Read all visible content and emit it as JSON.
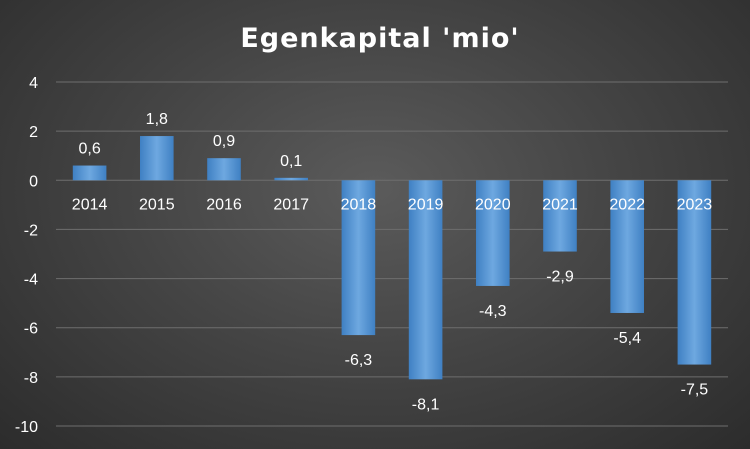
{
  "chart_data": {
    "type": "bar",
    "title": "Egenkapital 'mio'",
    "xlabel": "",
    "ylabel": "",
    "categories": [
      "2014",
      "2015",
      "2016",
      "2017",
      "2018",
      "2019",
      "2020",
      "2021",
      "2022",
      "2023"
    ],
    "values": [
      0.6,
      1.8,
      0.9,
      0.1,
      -6.3,
      -8.1,
      -4.3,
      -2.9,
      -5.4,
      -7.5
    ],
    "data_labels": [
      "0,6",
      "1,8",
      "0,9",
      "0,1",
      "-6,3",
      "-8,1",
      "-4,3",
      "-2,9",
      "-5,4",
      "-7,5"
    ],
    "ylim": [
      -10,
      4
    ],
    "yticks": [
      4,
      2,
      0,
      -2,
      -4,
      -6,
      -8,
      -10
    ],
    "ytick_labels": [
      "4",
      "2",
      "0",
      "-2",
      "-4",
      "-6",
      "-8",
      "-10"
    ],
    "grid": true,
    "legend": "none",
    "colors": {
      "bar": "#5b9bd5",
      "bar_light": "#78b0e4",
      "bar_dark": "#3f80c3",
      "text": "#ffffff",
      "grid": "#6e6e6e"
    }
  }
}
